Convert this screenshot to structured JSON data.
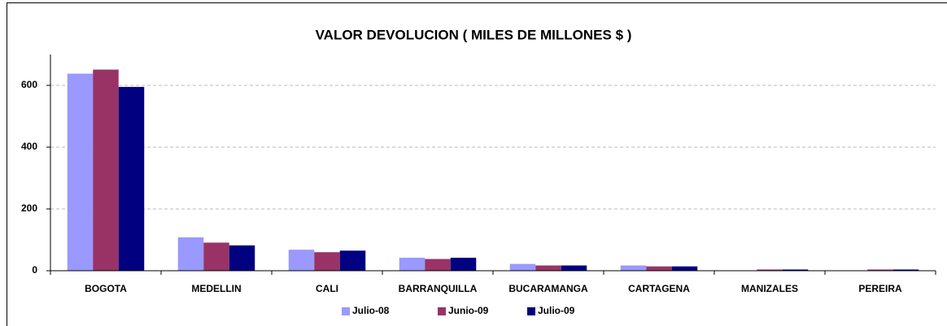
{
  "chart_data": {
    "type": "bar",
    "title": "VALOR DEVOLUCION ( MILES DE MILLONES $ )",
    "categories": [
      "BOGOTA",
      "MEDELLIN",
      "CALI",
      "BARRANQUILLA",
      "BUCARAMANGA",
      "CARTAGENA",
      "MANIZALES",
      "PEREIRA"
    ],
    "series": [
      {
        "name": "Julio-08",
        "color": "#9999ff",
        "values": [
          638,
          108,
          68,
          42,
          22,
          17,
          1,
          1
        ]
      },
      {
        "name": "Junio-09",
        "color": "#993366",
        "values": [
          651,
          91,
          60,
          38,
          17,
          14,
          4,
          4
        ]
      },
      {
        "name": "Julio-09",
        "color": "#000080",
        "values": [
          595,
          82,
          65,
          42,
          17,
          14,
          4,
          4
        ]
      }
    ],
    "ylim": [
      0,
      700
    ],
    "yticks": [
      0,
      200,
      400,
      600
    ],
    "grid": true,
    "legend": "bottom"
  }
}
